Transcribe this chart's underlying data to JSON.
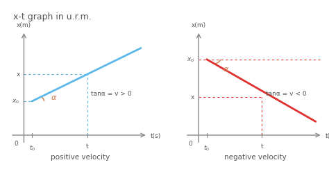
{
  "title": "x-t graph in u.r.m.",
  "title_color": "#555555",
  "title_fontsize": 9,
  "bg_color": "#ffffff",
  "subplot_label_left": "positive velocity",
  "subplot_label_right": "negative velocity",
  "label_fontsize": 8,
  "label_color": "#555555",
  "axis_color": "#888888",
  "line_color_left": "#5bb8e8",
  "line_color_right": "#e03030",
  "dashed_color_left": "#5bb8e8",
  "dashed_color_right": "#e03030",
  "annotation_color": "#555555",
  "alpha_color": "#cc7744",
  "formula_left": "tanα = v > 0",
  "formula_right": "tanα = v < 0",
  "alpha_label": "α"
}
